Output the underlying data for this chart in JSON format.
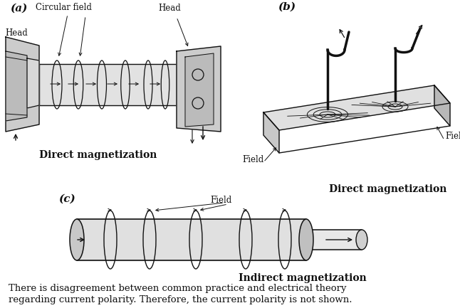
{
  "figure_width": 6.46,
  "figure_height": 4.33,
  "dpi": 100,
  "background_color": "#ffffff",
  "label_a": "(a)",
  "label_b": "(b)",
  "label_c": "(c)",
  "caption_line1": "There is disagreement between common practice and electrical theory",
  "caption_line2": "regarding current polarity. Therefore, the current polarity is not shown.",
  "label_circular_field": "Circular field",
  "label_head_left": "Head",
  "label_head_right": "Head",
  "label_direct_a": "Direct magnetization",
  "label_direct_b": "Direct magnetization",
  "label_indirect_c": "Indirect magnetization",
  "label_field_left": "Field",
  "label_field_right": "Field",
  "text_color": "#111111",
  "line_color": "#111111"
}
